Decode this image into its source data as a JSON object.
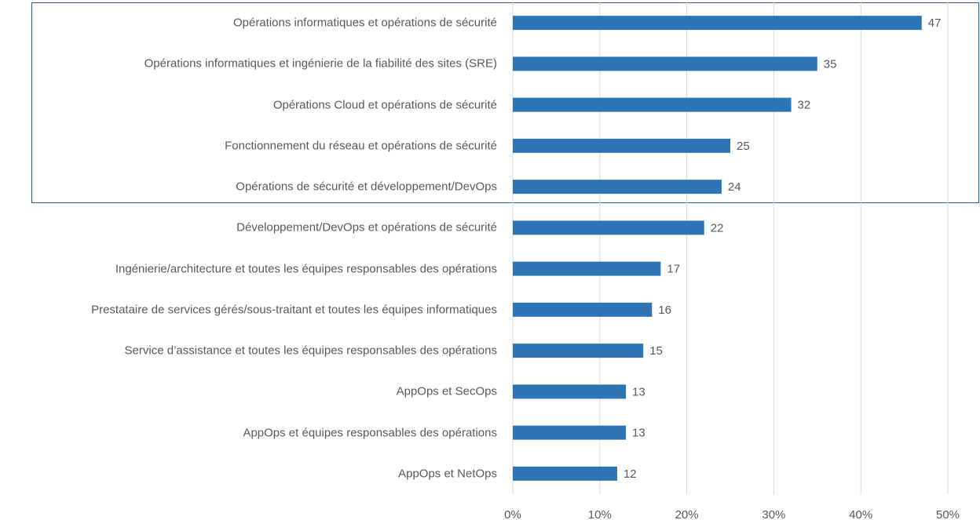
{
  "chart_data": {
    "type": "barh",
    "categories": [
      "Opérations informatiques et opérations de sécurité",
      "Opérations informatiques et ingénierie de la fiabilité des sites (SRE)",
      "Opérations Cloud et opérations de sécurité",
      "Fonctionnement du réseau et opérations de sécurité",
      "Opérations de sécurité et développement/DevOps",
      "Développement/DevOps et opérations de sécurité",
      "Ingénierie/architecture et toutes les équipes responsables des opérations",
      "Prestataire de services gérés/sous-traitant et toutes les équipes informatiques",
      "Service d’assistance et toutes les équipes responsables des opérations",
      "AppOps et SecOps",
      "AppOps et équipes responsables des opérations",
      "AppOps et NetOps"
    ],
    "values": [
      47,
      35,
      32,
      25,
      24,
      22,
      17,
      16,
      15,
      13,
      13,
      12
    ],
    "color": "#2e75b6",
    "xlim": [
      0,
      50
    ],
    "xticks": [
      {
        "value": 0,
        "label": "0%"
      },
      {
        "value": 10,
        "label": "10%"
      },
      {
        "value": 20,
        "label": "20%"
      },
      {
        "value": 30,
        "label": "30%"
      },
      {
        "value": 40,
        "label": "40%"
      },
      {
        "value": 50,
        "label": "50%"
      }
    ],
    "grid": true
  }
}
